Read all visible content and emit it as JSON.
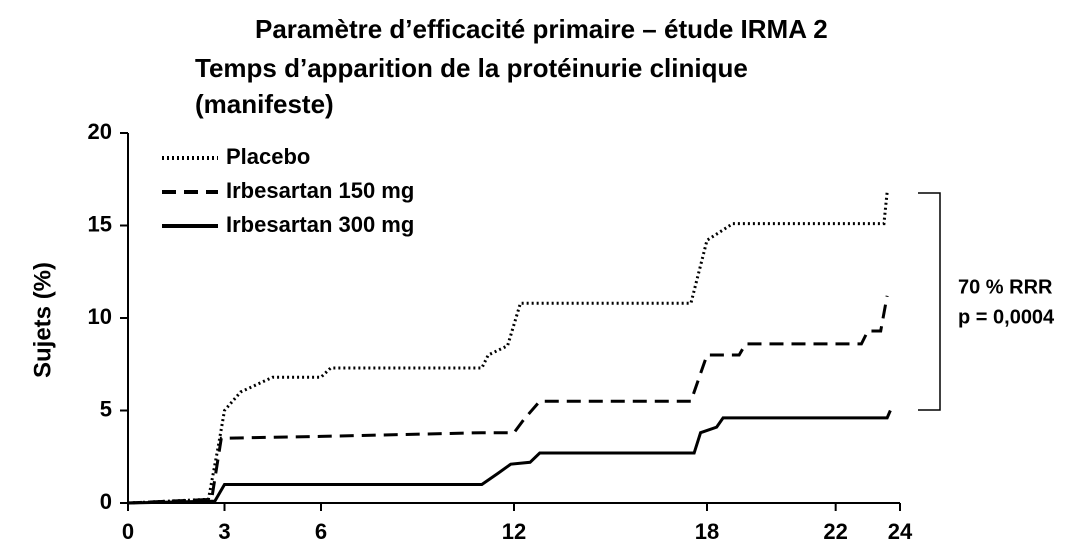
{
  "chart_data": {
    "type": "line",
    "title": "Paramètre d’efficacité primaire – étude IRMA 2",
    "subtitle": "Temps d’apparition de la protéinurie clinique (manifeste)",
    "y_label": "Sujets (%)",
    "annotation": [
      "70 % RRR",
      "p = 0,0004"
    ],
    "xlim": [
      0,
      24
    ],
    "xticks": [
      0,
      3,
      6,
      12,
      18,
      22,
      24
    ],
    "ylim": [
      0,
      20
    ],
    "yticks": [
      0,
      5,
      10,
      15,
      20
    ],
    "legend": "top-left",
    "series": [
      {
        "name": "Placebo",
        "color": "#000000",
        "line_style": "dotted",
        "x": [
          0,
          2.5,
          2.8,
          3,
          3.5,
          4.5,
          6,
          6.3,
          11,
          11.2,
          11.8,
          12.2,
          17.5,
          18,
          18.8,
          23.5,
          23.6
        ],
        "values": [
          0,
          0.2,
          3,
          5,
          6,
          6.8,
          6.8,
          7.3,
          7.3,
          8,
          8.5,
          10.8,
          10.8,
          14.2,
          15.1,
          15.1,
          16.8
        ]
      },
      {
        "name": "Irbesartan 150 mg",
        "color": "#000000",
        "line_style": "dashed",
        "x": [
          0,
          2.6,
          2.9,
          6,
          11,
          12,
          12.3,
          12.8,
          17.5,
          18,
          19,
          19.2,
          22.8,
          23,
          23.4,
          23.6
        ],
        "values": [
          0,
          0.2,
          3.5,
          3.6,
          3.8,
          3.8,
          4.5,
          5.5,
          5.5,
          8,
          8,
          8.6,
          8.6,
          9.3,
          9.3,
          11.2
        ]
      },
      {
        "name": "Irbesartan 300 mg",
        "color": "#000000",
        "line_style": "solid",
        "x": [
          0,
          2.7,
          3,
          11,
          11.5,
          11.9,
          12.5,
          12.8,
          17.6,
          17.8,
          18.3,
          18.5,
          23.6,
          23.7
        ],
        "values": [
          0,
          0.1,
          1,
          1,
          1.6,
          2.1,
          2.2,
          2.7,
          2.7,
          3.8,
          4.1,
          4.6,
          4.6,
          5
        ]
      }
    ]
  }
}
